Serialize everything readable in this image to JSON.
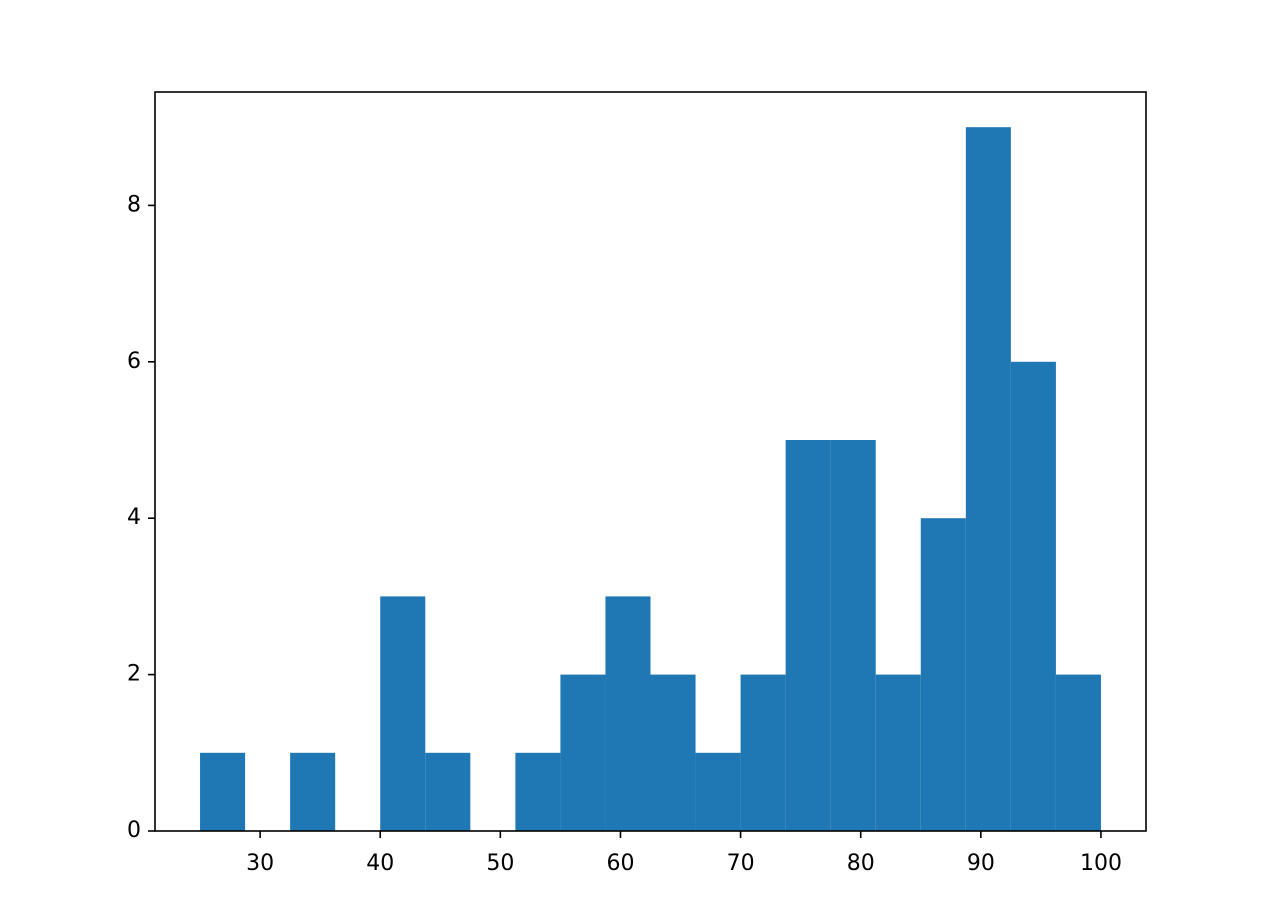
{
  "chart_data": {
    "type": "histogram",
    "bins": [
      25,
      28.75,
      32.5,
      36.25,
      40,
      43.75,
      47.5,
      51.25,
      55,
      58.75,
      62.5,
      66.25,
      70,
      73.75,
      77.5,
      81.25,
      85,
      88.75,
      92.5,
      96.25,
      100
    ],
    "values": [
      1,
      0,
      1,
      0,
      3,
      1,
      0,
      1,
      2,
      3,
      2,
      1,
      2,
      5,
      5,
      2,
      4,
      9,
      6,
      2
    ],
    "color": "#1f77b4",
    "xlim": [
      21.25,
      103.75
    ],
    "xticks": [
      30,
      40,
      50,
      60,
      70,
      80,
      90,
      100
    ],
    "ylim": [
      0,
      9.45
    ],
    "yticks": [
      0,
      2,
      4,
      6,
      8
    ]
  }
}
